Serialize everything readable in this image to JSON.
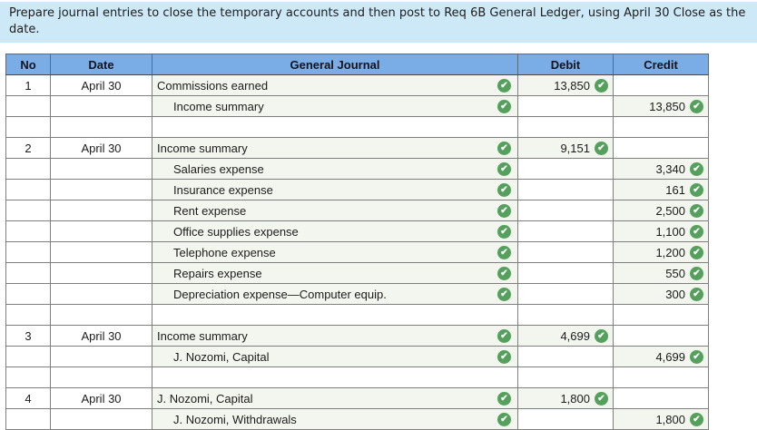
{
  "instruction": "Prepare journal entries to close the temporary accounts and then post to Req 6B General Ledger, using April 30 Close as the date.",
  "colors": {
    "instruction_bg": "#cde8f7",
    "header_bg": "#7aace6",
    "answered_cell_bg": "#f3f6ee",
    "check_green": "#55a05c",
    "grid_border": "#7f7f7f"
  },
  "icons": {
    "check_glyph": "✔",
    "check_meaning": "correct-check-icon"
  },
  "table": {
    "headers": [
      "No",
      "Date",
      "General Journal",
      "Debit",
      "Credit"
    ],
    "rows": [
      {
        "no": "1",
        "date": "April 30",
        "account": "Commissions earned",
        "indent": false,
        "debit": "13,850",
        "credit": ""
      },
      {
        "no": "",
        "date": "",
        "account": "Income summary",
        "indent": true,
        "debit": "",
        "credit": "13,850"
      },
      {
        "blank": true
      },
      {
        "no": "2",
        "date": "April 30",
        "account": "Income summary",
        "indent": false,
        "debit": "9,151",
        "credit": ""
      },
      {
        "no": "",
        "date": "",
        "account": "Salaries expense",
        "indent": true,
        "debit": "",
        "credit": "3,340"
      },
      {
        "no": "",
        "date": "",
        "account": "Insurance expense",
        "indent": true,
        "debit": "",
        "credit": "161"
      },
      {
        "no": "",
        "date": "",
        "account": "Rent expense",
        "indent": true,
        "debit": "",
        "credit": "2,500"
      },
      {
        "no": "",
        "date": "",
        "account": "Office supplies expense",
        "indent": true,
        "debit": "",
        "credit": "1,100"
      },
      {
        "no": "",
        "date": "",
        "account": "Telephone expense",
        "indent": true,
        "debit": "",
        "credit": "1,200"
      },
      {
        "no": "",
        "date": "",
        "account": "Repairs expense",
        "indent": true,
        "debit": "",
        "credit": "550"
      },
      {
        "no": "",
        "date": "",
        "account": "Depreciation expense—Computer equip.",
        "indent": true,
        "debit": "",
        "credit": "300"
      },
      {
        "blank": true
      },
      {
        "no": "3",
        "date": "April 30",
        "account": "Income summary",
        "indent": false,
        "debit": "4,699",
        "credit": ""
      },
      {
        "no": "",
        "date": "",
        "account": "J. Nozomi, Capital",
        "indent": true,
        "debit": "",
        "credit": "4,699"
      },
      {
        "blank": true
      },
      {
        "no": "4",
        "date": "April 30",
        "account": "J. Nozomi, Capital",
        "indent": false,
        "debit": "1,800",
        "credit": ""
      },
      {
        "no": "",
        "date": "",
        "account": "J. Nozomi, Withdrawals",
        "indent": true,
        "debit": "",
        "credit": "1,800"
      }
    ]
  }
}
